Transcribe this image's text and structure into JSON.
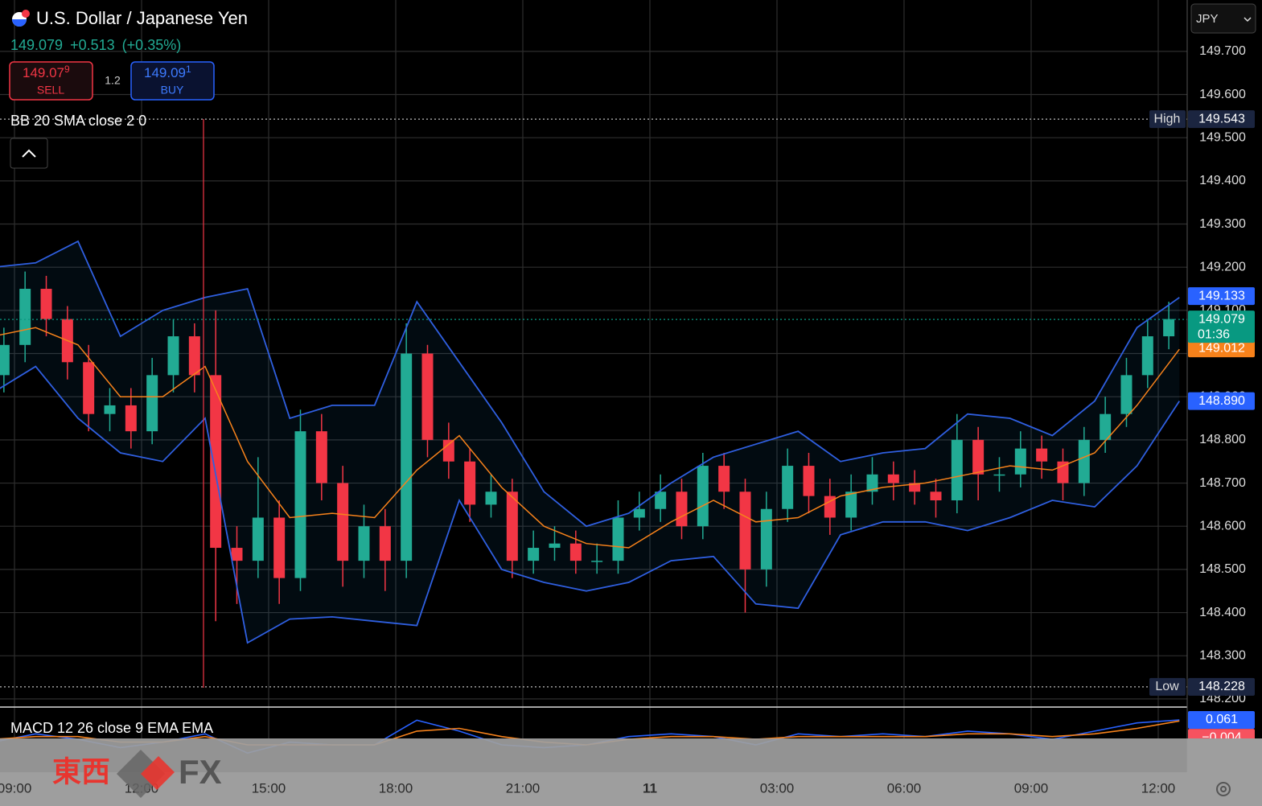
{
  "header": {
    "title": "U.S. Dollar / Japanese Yen",
    "price": "149.079",
    "change": "+0.513",
    "change_pct": "(+0.35%)"
  },
  "trade": {
    "sell_price": "149.07",
    "sell_pip": "9",
    "sell_label": "SELL",
    "spread": "1.2",
    "buy_price": "149.09",
    "buy_pip": "1",
    "buy_label": "BUY"
  },
  "currency": "JPY",
  "watermark": [
    "東西",
    "FX"
  ],
  "chart_data": [
    {
      "type": "candlestick",
      "title": "BB 20 SMA close 2 0",
      "x": [
        -0.25,
        0.25,
        0.75,
        1.25,
        1.75,
        2.25,
        2.75,
        3.25,
        3.75,
        4.25,
        4.75,
        5.25,
        5.75,
        6.25,
        6.75,
        7.25,
        7.75,
        8.25,
        8.75,
        9.25,
        9.75,
        10.25,
        10.75,
        11.25,
        11.75,
        12.25,
        12.75,
        13.25,
        13.75,
        14.25,
        14.75,
        15.25,
        15.75,
        16.25,
        16.75,
        17.25,
        17.75,
        18.25,
        18.75,
        19.25,
        19.75,
        20.25,
        20.75,
        21.25,
        21.75,
        22.25,
        22.75,
        23.25,
        23.75,
        24.25,
        24.75,
        25.25,
        25.75,
        26.25,
        26.75,
        27.25
      ],
      "open": [
        148.95,
        149.02,
        149.15,
        149.08,
        148.98,
        148.86,
        148.88,
        148.82,
        148.95,
        149.04,
        148.95,
        148.55,
        148.52,
        148.62,
        148.48,
        148.82,
        148.7,
        148.52,
        148.6,
        148.52,
        149.0,
        148.8,
        148.75,
        148.65,
        148.68,
        148.52,
        148.55,
        148.56,
        148.52,
        148.52,
        148.62,
        148.64,
        148.68,
        148.6,
        148.74,
        148.68,
        148.5,
        148.64,
        148.74,
        148.67,
        148.62,
        148.68,
        148.72,
        148.7,
        148.68,
        148.66,
        148.8,
        148.72,
        148.72,
        148.78,
        148.75,
        148.7,
        148.8,
        148.86,
        148.95,
        149.04
      ],
      "high": [
        149.06,
        149.19,
        149.18,
        149.11,
        149.02,
        148.92,
        148.92,
        148.99,
        149.08,
        149.07,
        149.1,
        148.6,
        148.76,
        148.66,
        148.87,
        148.86,
        148.74,
        148.65,
        148.64,
        149.07,
        149.02,
        148.84,
        148.78,
        148.72,
        148.71,
        148.59,
        148.6,
        148.59,
        148.56,
        148.66,
        148.68,
        148.72,
        148.71,
        148.77,
        148.77,
        148.71,
        148.68,
        148.78,
        148.77,
        148.71,
        148.72,
        148.76,
        148.75,
        148.73,
        148.71,
        148.86,
        148.83,
        148.76,
        148.82,
        148.81,
        148.78,
        148.83,
        148.9,
        148.99,
        149.08,
        149.12
      ],
      "low": [
        148.91,
        148.98,
        149.04,
        148.94,
        148.82,
        148.82,
        148.78,
        148.79,
        148.91,
        148.91,
        148.38,
        148.42,
        148.48,
        148.42,
        148.45,
        148.66,
        148.46,
        148.48,
        148.45,
        148.48,
        148.76,
        148.71,
        148.61,
        148.62,
        148.48,
        148.49,
        148.52,
        148.49,
        148.49,
        148.49,
        148.59,
        148.61,
        148.57,
        148.57,
        148.64,
        148.4,
        148.46,
        148.61,
        148.63,
        148.58,
        148.59,
        148.65,
        148.66,
        148.65,
        148.62,
        148.63,
        148.66,
        148.68,
        148.69,
        148.71,
        148.66,
        148.67,
        148.77,
        148.83,
        148.92,
        149.01
      ],
      "close": [
        149.02,
        149.15,
        149.08,
        148.98,
        148.86,
        148.88,
        148.82,
        148.95,
        149.04,
        148.95,
        148.55,
        148.52,
        148.62,
        148.48,
        148.82,
        148.7,
        148.52,
        148.6,
        148.52,
        149.0,
        148.8,
        148.75,
        148.65,
        148.68,
        148.52,
        148.55,
        148.56,
        148.52,
        148.52,
        148.62,
        148.64,
        148.68,
        148.6,
        148.74,
        148.68,
        148.5,
        148.64,
        148.74,
        148.67,
        148.62,
        148.68,
        148.72,
        148.7,
        148.68,
        148.66,
        148.8,
        148.72,
        148.72,
        148.78,
        148.75,
        148.7,
        148.8,
        148.86,
        148.95,
        149.04,
        149.08
      ],
      "up_color": "#22ab94",
      "down_color": "#f23645",
      "bb_x": [
        -0.5,
        0.5,
        1.5,
        2.5,
        3.5,
        4.5,
        5.5,
        6.5,
        7.5,
        8.5,
        9.5,
        10.5,
        11.5,
        12.5,
        13.5,
        14.5,
        15.5,
        16.5,
        17.5,
        18.5,
        19.5,
        20.5,
        21.5,
        22.5,
        23.5,
        24.5,
        25.5,
        26.5,
        27.5
      ],
      "bb_upper": [
        149.2,
        149.21,
        149.26,
        149.04,
        149.1,
        149.13,
        149.15,
        148.85,
        148.88,
        148.88,
        149.12,
        148.98,
        148.84,
        148.68,
        148.6,
        148.63,
        148.7,
        148.76,
        148.79,
        148.82,
        148.75,
        148.77,
        148.78,
        148.86,
        148.85,
        148.81,
        148.89,
        149.06,
        149.13
      ],
      "bb_basis": [
        149.04,
        149.06,
        149.02,
        148.9,
        148.9,
        148.97,
        148.75,
        148.62,
        148.63,
        148.62,
        148.73,
        148.81,
        148.69,
        148.6,
        148.56,
        148.55,
        148.61,
        148.66,
        148.61,
        148.62,
        148.67,
        148.69,
        148.7,
        148.72,
        148.74,
        148.73,
        148.77,
        148.88,
        149.01
      ],
      "bb_lower": [
        148.91,
        148.97,
        148.85,
        148.77,
        148.75,
        148.85,
        148.33,
        148.385,
        148.39,
        148.38,
        148.37,
        148.66,
        148.5,
        148.47,
        148.45,
        148.47,
        148.52,
        148.53,
        148.42,
        148.41,
        148.58,
        148.61,
        148.61,
        148.59,
        148.62,
        148.66,
        148.645,
        148.74,
        148.89
      ],
      "band_color": "#2f5fe0",
      "basis_color": "#f7821b",
      "xlim": [
        -0.342,
        27.665
      ],
      "xticks": [
        {
          "value": 0,
          "label": "09:00"
        },
        {
          "value": 3,
          "label": "12:00"
        },
        {
          "value": 6,
          "label": "15:00"
        },
        {
          "value": 9,
          "label": "18:00"
        },
        {
          "value": 12,
          "label": "21:00"
        },
        {
          "value": 15,
          "label": "11"
        },
        {
          "value": 18,
          "label": "03:00"
        },
        {
          "value": 21,
          "label": "06:00"
        },
        {
          "value": 24,
          "label": "09:00"
        },
        {
          "value": 27,
          "label": "12:00"
        }
      ],
      "ylim": [
        148.183,
        149.819
      ],
      "yticks": [
        {
          "value": 149.7,
          "label": "149.700"
        },
        {
          "value": 149.6,
          "label": "149.600"
        },
        {
          "value": 149.5,
          "label": "149.500"
        },
        {
          "value": 149.4,
          "label": "149.400"
        },
        {
          "value": 149.3,
          "label": "149.300"
        },
        {
          "value": 149.2,
          "label": "149.200"
        },
        {
          "value": 149.1,
          "label": "149.100"
        },
        {
          "value": 149.0,
          "label": "149.000"
        },
        {
          "value": 148.9,
          "label": "148.900"
        },
        {
          "value": 148.8,
          "label": "148.800"
        },
        {
          "value": 148.7,
          "label": "148.700"
        },
        {
          "value": 148.6,
          "label": "148.600"
        },
        {
          "value": 148.5,
          "label": "148.500"
        },
        {
          "value": 148.4,
          "label": "148.400"
        },
        {
          "value": 148.3,
          "label": "148.300"
        },
        {
          "value": 148.2,
          "label": "148.200"
        }
      ],
      "grid": true,
      "price_labels": [
        {
          "value": 149.543,
          "label": "149.543",
          "tag": "High",
          "color": "#1b2540",
          "line": true
        },
        {
          "value": 148.228,
          "label": "148.228",
          "tag": "Low",
          "color": "#1b2540",
          "line": true
        },
        {
          "value": 149.133,
          "label": "149.133",
          "color": "#2962ff"
        },
        {
          "value": 148.89,
          "label": "148.890",
          "color": "#2962ff"
        },
        {
          "value": 149.012,
          "label": "149.012",
          "color": "#f7821b"
        },
        {
          "value": 149.079,
          "label": "149.079",
          "countdown": "01:36",
          "color": "#089981",
          "line": true
        }
      ]
    },
    {
      "type": "line",
      "title": "MACD 12 26 close 9 EMA EMA",
      "x": [
        -0.5,
        0.5,
        1.5,
        2.5,
        3.5,
        4.5,
        5.5,
        6.5,
        7.5,
        8.5,
        9.5,
        10.5,
        11.5,
        12.5,
        13.5,
        14.5,
        15.5,
        16.5,
        17.5,
        18.5,
        19.5,
        20.5,
        21.5,
        22.5,
        23.5,
        24.5,
        25.5,
        26.5,
        27.5
      ],
      "series": [
        {
          "color": "#2962ff",
          "values": [
            -0.02,
            0.01,
            -0.01,
            -0.04,
            -0.02,
            0.01,
            -0.06,
            -0.02,
            -0.03,
            -0.03,
            0.06,
            0.02,
            -0.03,
            -0.04,
            -0.03,
            0.0,
            0.01,
            0.0,
            -0.03,
            0.01,
            0.0,
            0.01,
            0.0,
            0.02,
            0.01,
            -0.01,
            0.02,
            0.05,
            0.061
          ]
        },
        {
          "color": "#f7821b",
          "values": [
            -0.01,
            0.0,
            0.0,
            -0.02,
            -0.02,
            0.0,
            -0.03,
            -0.03,
            -0.03,
            -0.03,
            0.02,
            0.03,
            0.0,
            -0.02,
            -0.03,
            -0.01,
            0.0,
            0.0,
            -0.01,
            0.0,
            0.0,
            0.0,
            0.0,
            0.01,
            0.01,
            0.0,
            0.01,
            0.03,
            0.057
          ]
        }
      ],
      "ylim": [
        -0.13,
        0.105
      ],
      "price_labels": [
        {
          "value": 0.061,
          "label": "0.061",
          "color": "#2962ff"
        },
        {
          "value": -0.004,
          "label": "−0.004",
          "color": "#f7525f"
        }
      ]
    }
  ]
}
